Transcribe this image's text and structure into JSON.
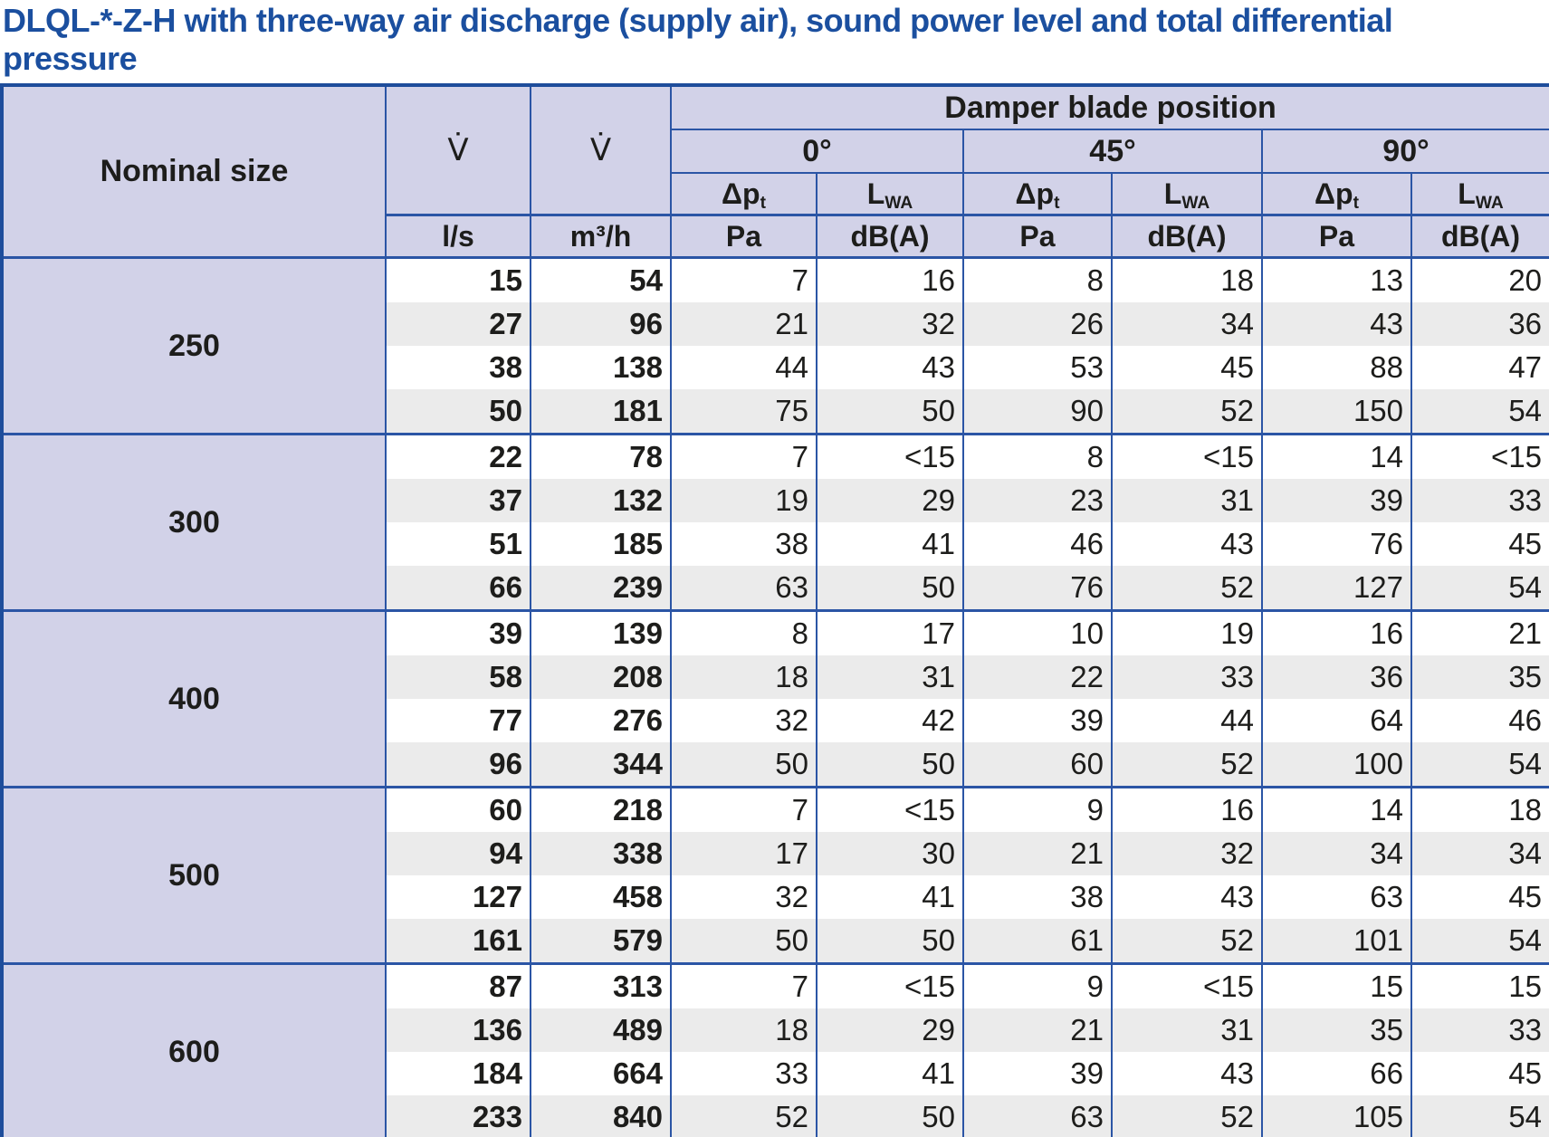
{
  "page_title": {
    "line1": "DLQL-*-Z-H with three-way air discharge (supply air), sound power level and total differential",
    "line2": "pressure"
  },
  "colors": {
    "title_blue": "#1b4f9f",
    "inner_border_blue": "#2b55a5",
    "outer_border_blue": "#1e4d9b",
    "header_lavender": "#d2d2e8",
    "stripe_gray": "#ebebeb",
    "text_dark": "#1d1d1b"
  },
  "table": {
    "header": {
      "nominal_size": "Nominal size",
      "flow_symbol": "V̇",
      "damper_title": "Damper blade position",
      "angles": [
        "0°",
        "45°",
        "90°"
      ],
      "dp": {
        "base": "Δp",
        "sub": "t"
      },
      "lwa": {
        "base": "L",
        "sub": "WA"
      },
      "units": {
        "flow_ls": "l/s",
        "flow_m3h": "m³/h",
        "pressure": "Pa",
        "sound": "dB(A)"
      }
    },
    "groups": [
      {
        "nominal_size": "250",
        "rows": [
          [
            "15",
            "54",
            "7",
            "16",
            "8",
            "18",
            "13",
            "20"
          ],
          [
            "27",
            "96",
            "21",
            "32",
            "26",
            "34",
            "43",
            "36"
          ],
          [
            "38",
            "138",
            "44",
            "43",
            "53",
            "45",
            "88",
            "47"
          ],
          [
            "50",
            "181",
            "75",
            "50",
            "90",
            "52",
            "150",
            "54"
          ]
        ]
      },
      {
        "nominal_size": "300",
        "rows": [
          [
            "22",
            "78",
            "7",
            "<15",
            "8",
            "<15",
            "14",
            "<15"
          ],
          [
            "37",
            "132",
            "19",
            "29",
            "23",
            "31",
            "39",
            "33"
          ],
          [
            "51",
            "185",
            "38",
            "41",
            "46",
            "43",
            "76",
            "45"
          ],
          [
            "66",
            "239",
            "63",
            "50",
            "76",
            "52",
            "127",
            "54"
          ]
        ]
      },
      {
        "nominal_size": "400",
        "rows": [
          [
            "39",
            "139",
            "8",
            "17",
            "10",
            "19",
            "16",
            "21"
          ],
          [
            "58",
            "208",
            "18",
            "31",
            "22",
            "33",
            "36",
            "35"
          ],
          [
            "77",
            "276",
            "32",
            "42",
            "39",
            "44",
            "64",
            "46"
          ],
          [
            "96",
            "344",
            "50",
            "50",
            "60",
            "52",
            "100",
            "54"
          ]
        ]
      },
      {
        "nominal_size": "500",
        "rows": [
          [
            "60",
            "218",
            "7",
            "<15",
            "9",
            "16",
            "14",
            "18"
          ],
          [
            "94",
            "338",
            "17",
            "30",
            "21",
            "32",
            "34",
            "34"
          ],
          [
            "127",
            "458",
            "32",
            "41",
            "38",
            "43",
            "63",
            "45"
          ],
          [
            "161",
            "579",
            "50",
            "50",
            "61",
            "52",
            "101",
            "54"
          ]
        ]
      },
      {
        "nominal_size": "600",
        "rows": [
          [
            "87",
            "313",
            "7",
            "<15",
            "9",
            "<15",
            "15",
            "15"
          ],
          [
            "136",
            "489",
            "18",
            "29",
            "21",
            "31",
            "35",
            "33"
          ],
          [
            "184",
            "664",
            "33",
            "41",
            "39",
            "43",
            "66",
            "45"
          ],
          [
            "233",
            "840",
            "52",
            "50",
            "63",
            "52",
            "105",
            "54"
          ]
        ]
      }
    ]
  }
}
